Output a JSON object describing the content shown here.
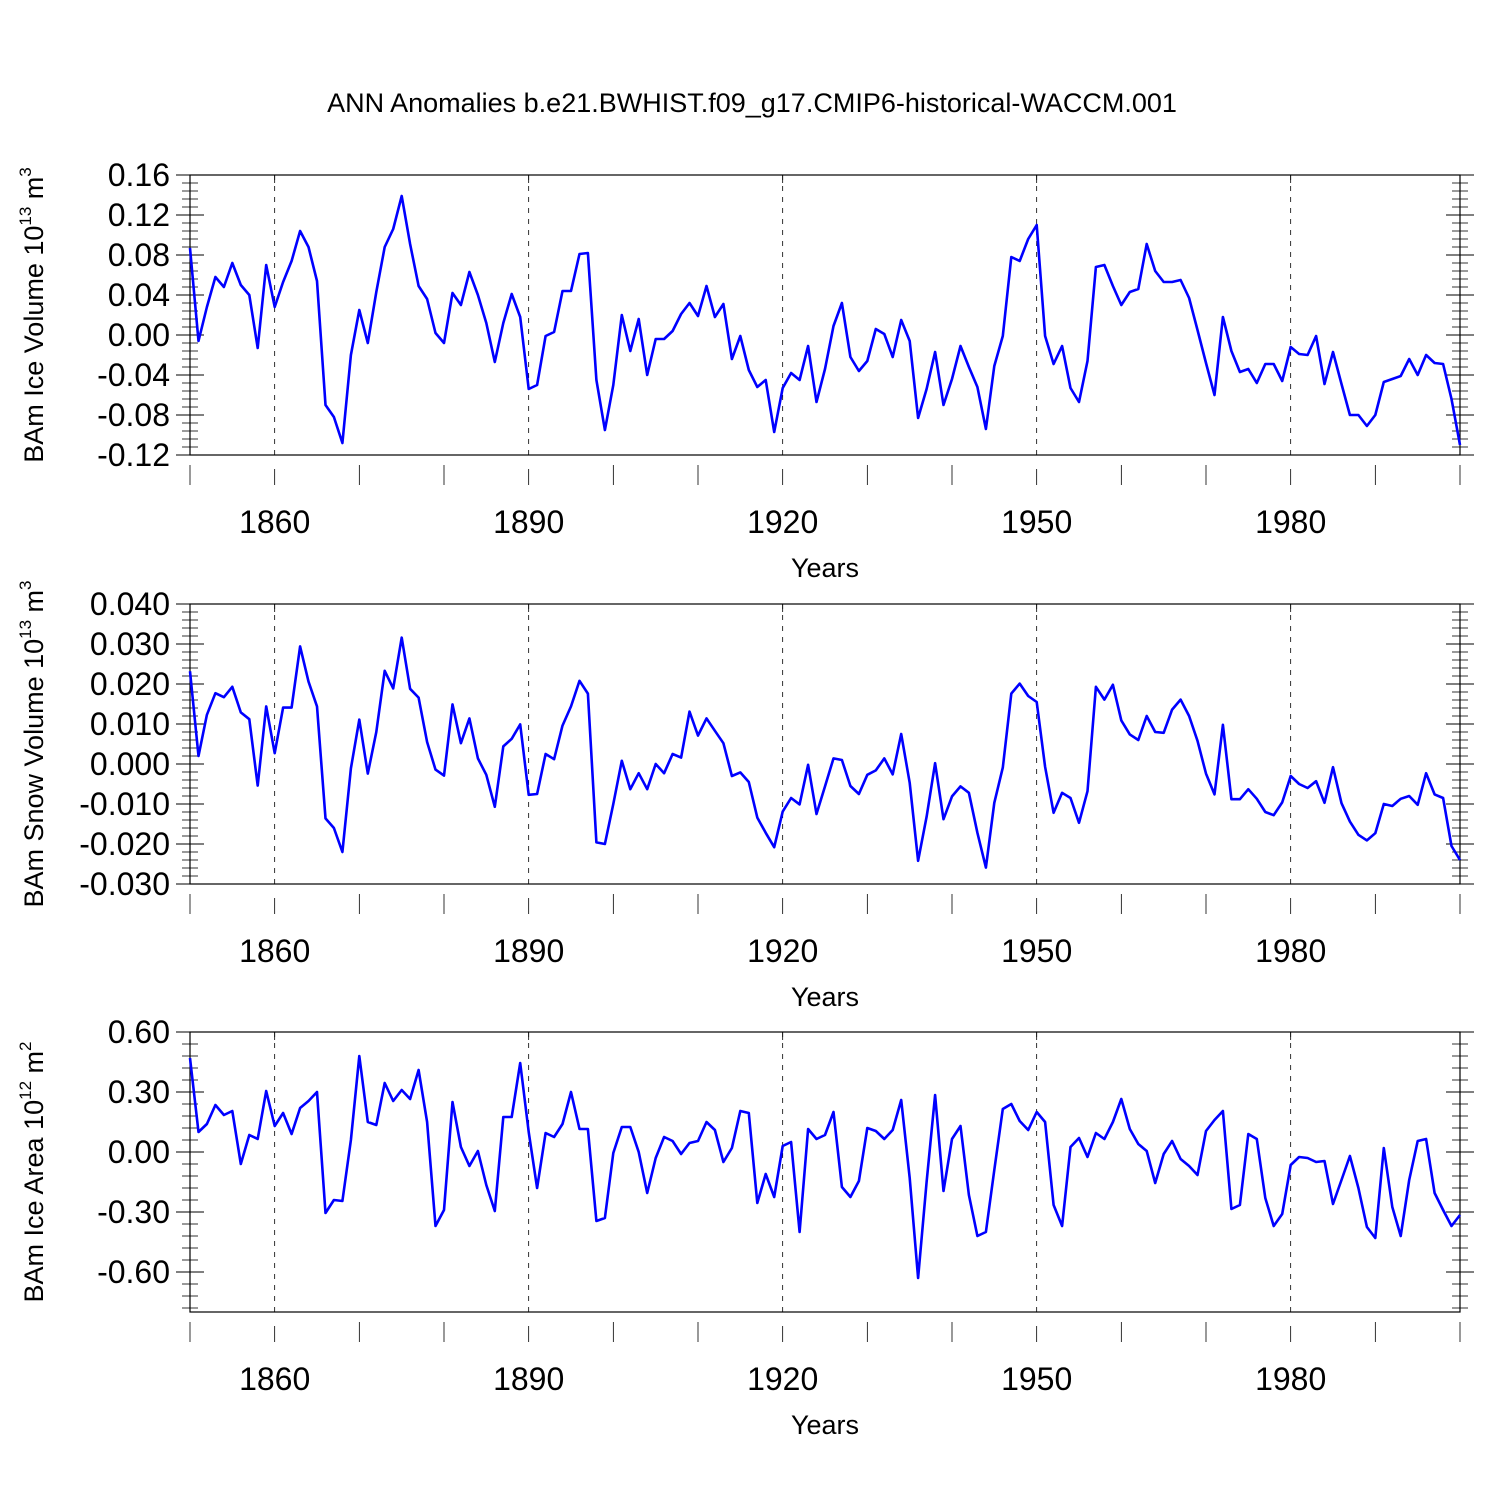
{
  "title": "ANN Anomalies b.e21.BWHIST.f09_g17.CMIP6-historical-WACCM.001",
  "colors": {
    "line": "#0000ff",
    "axis": "#000000",
    "grid": "#000000",
    "background": "#ffffff"
  },
  "chart_data": [
    {
      "type": "line",
      "ylabel": "BAm Ice Volume 10",
      "ylabel_exp": "13",
      "ylabel_unit": " m",
      "ylabel_unit_exp": "3",
      "xlabel": "Years",
      "xlim": [
        1850,
        2000
      ],
      "ylim": [
        -0.12,
        0.16
      ],
      "xticks": [
        1860,
        1890,
        1920,
        1950,
        1980
      ],
      "xtick_labels": [
        "1860",
        "1890",
        "1920",
        "1950",
        "1980"
      ],
      "yticks": [
        -0.12,
        -0.08,
        -0.04,
        0.0,
        0.04,
        0.08,
        0.12,
        0.16
      ],
      "ytick_labels": [
        "-0.12",
        "-0.08",
        "-0.04",
        "0.00",
        "0.04",
        "0.08",
        "0.12",
        "0.16"
      ],
      "grid": "vertical dashed at major x ticks",
      "series": [
        {
          "name": "BAm Ice Volume",
          "x_start": 1850,
          "x_step": 1,
          "values": [
            0.087,
            -0.006,
            0.028,
            0.058,
            0.048,
            0.072,
            0.05,
            0.04,
            -0.013,
            0.07,
            0.028,
            0.053,
            0.074,
            0.104,
            0.088,
            0.054,
            -0.07,
            -0.082,
            -0.108,
            -0.02,
            0.025,
            -0.008,
            0.043,
            0.088,
            0.106,
            0.139,
            0.091,
            0.049,
            0.036,
            0.002,
            -0.008,
            0.042,
            0.03,
            0.063,
            0.04,
            0.012,
            -0.027,
            0.012,
            0.041,
            0.018,
            -0.054,
            -0.05,
            -0.001,
            0.003,
            0.044,
            0.044,
            0.081,
            0.082,
            -0.045,
            -0.095,
            -0.05,
            0.02,
            -0.016,
            0.016,
            -0.04,
            -0.004,
            -0.004,
            0.004,
            0.021,
            0.032,
            0.019,
            0.049,
            0.018,
            0.031,
            -0.024,
            -0.001,
            -0.035,
            -0.052,
            -0.045,
            -0.097,
            -0.053,
            -0.038,
            -0.045,
            -0.011,
            -0.067,
            -0.034,
            0.009,
            0.032,
            -0.022,
            -0.036,
            -0.026,
            0.006,
            0.001,
            -0.022,
            0.015,
            -0.006,
            -0.083,
            -0.054,
            -0.017,
            -0.07,
            -0.044,
            -0.011,
            -0.032,
            -0.052,
            -0.094,
            -0.031,
            -0.001,
            0.078,
            0.074,
            0.096,
            0.11,
            -0.001,
            -0.029,
            -0.011,
            -0.053,
            -0.067,
            -0.026,
            0.068,
            0.07,
            0.049,
            0.03,
            0.043,
            0.046,
            0.091,
            0.064,
            0.053,
            0.053,
            0.055,
            0.037,
            0.005,
            -0.028,
            -0.06,
            0.018,
            -0.016,
            -0.037,
            -0.034,
            -0.048,
            -0.029,
            -0.029,
            -0.046,
            -0.012,
            -0.019,
            -0.02,
            -0.001,
            -0.049,
            -0.017,
            -0.049,
            -0.08,
            -0.08,
            -0.091,
            -0.08,
            -0.047,
            -0.044,
            -0.041,
            -0.024,
            -0.04,
            -0.02,
            -0.028,
            -0.029,
            -0.064,
            -0.11
          ]
        }
      ]
    },
    {
      "type": "line",
      "ylabel": "BAm Snow Volume 10",
      "ylabel_exp": "13",
      "ylabel_unit": " m",
      "ylabel_unit_exp": "3",
      "xlabel": "Years",
      "xlim": [
        1850,
        2000
      ],
      "ylim": [
        -0.03,
        0.04
      ],
      "xticks": [
        1860,
        1890,
        1920,
        1950,
        1980
      ],
      "xtick_labels": [
        "1860",
        "1890",
        "1920",
        "1950",
        "1980"
      ],
      "yticks": [
        -0.03,
        -0.02,
        -0.01,
        0.0,
        0.01,
        0.02,
        0.03,
        0.04
      ],
      "ytick_labels": [
        "-0.030",
        "-0.020",
        "-0.010",
        "0.000",
        "0.010",
        "0.020",
        "0.030",
        "0.040"
      ],
      "grid": "vertical dashed at major x ticks",
      "series": [
        {
          "name": "BAm Snow Volume",
          "x_start": 1850,
          "x_step": 1,
          "values": [
            0.0232,
            0.002,
            0.0123,
            0.0177,
            0.0167,
            0.0193,
            0.0129,
            0.0112,
            -0.0054,
            0.0144,
            0.0027,
            0.0141,
            0.0141,
            0.0294,
            0.0206,
            0.0144,
            -0.0136,
            -0.016,
            -0.022,
            -0.0011,
            0.0111,
            -0.0024,
            0.008,
            0.0233,
            0.0189,
            0.0316,
            0.0188,
            0.0166,
            0.0055,
            -0.0014,
            -0.0029,
            0.0149,
            0.0052,
            0.0114,
            0.0014,
            -0.0027,
            -0.0107,
            0.0044,
            0.0063,
            0.0099,
            -0.0077,
            -0.0075,
            0.0025,
            0.0012,
            0.0096,
            0.0144,
            0.0208,
            0.0176,
            -0.0196,
            -0.02,
            -0.01,
            0.0008,
            -0.0063,
            -0.0023,
            -0.0063,
            0.0,
            -0.0023,
            0.0025,
            0.0016,
            0.0131,
            0.0071,
            0.0114,
            0.0083,
            0.0052,
            -0.003,
            -0.0021,
            -0.0045,
            -0.0134,
            -0.0172,
            -0.0208,
            -0.0119,
            -0.0085,
            -0.0101,
            -0.0002,
            -0.0125,
            -0.0056,
            0.0014,
            0.001,
            -0.0055,
            -0.0075,
            -0.0027,
            -0.0016,
            0.0014,
            -0.0026,
            0.0075,
            -0.0047,
            -0.0242,
            -0.0132,
            0.0002,
            -0.0138,
            -0.0081,
            -0.0056,
            -0.0072,
            -0.0172,
            -0.0259,
            -0.0097,
            -0.0009,
            0.0176,
            0.0201,
            0.017,
            0.0155,
            -0.0007,
            -0.0122,
            -0.0072,
            -0.0085,
            -0.0147,
            -0.0068,
            0.0193,
            0.0161,
            0.0198,
            0.0109,
            0.0074,
            0.006,
            0.012,
            0.008,
            0.0078,
            0.0136,
            0.0161,
            0.012,
            0.0058,
            -0.0024,
            -0.0076,
            0.0098,
            -0.0088,
            -0.0088,
            -0.0063,
            -0.0087,
            -0.012,
            -0.0128,
            -0.0096,
            -0.003,
            -0.005,
            -0.006,
            -0.0043,
            -0.0097,
            -0.0008,
            -0.0098,
            -0.0144,
            -0.0177,
            -0.0191,
            -0.0173,
            -0.01,
            -0.0105,
            -0.0087,
            -0.008,
            -0.0102,
            -0.0023,
            -0.0076,
            -0.0085,
            -0.0205,
            -0.024
          ]
        }
      ]
    },
    {
      "type": "line",
      "ylabel": "BAm Ice Area 10",
      "ylabel_exp": "12",
      "ylabel_unit": " m",
      "ylabel_unit_exp": "2",
      "xlabel": "Years",
      "xlim": [
        1850,
        2000
      ],
      "ylim": [
        -0.8,
        0.6
      ],
      "xticks": [
        1860,
        1890,
        1920,
        1950,
        1980
      ],
      "xtick_labels": [
        "1860",
        "1890",
        "1920",
        "1950",
        "1980"
      ],
      "yticks": [
        -0.6,
        -0.3,
        0.0,
        0.3,
        0.6
      ],
      "ytick_labels": [
        "-0.60",
        "-0.30",
        "0.00",
        "0.30",
        "0.60"
      ],
      "grid": "vertical dashed at major x ticks",
      "series": [
        {
          "name": "BAm Ice Area",
          "x_start": 1850,
          "x_step": 1,
          "values": [
            0.47,
            0.1,
            0.14,
            0.235,
            0.185,
            0.205,
            -0.06,
            0.085,
            0.065,
            0.305,
            0.13,
            0.195,
            0.09,
            0.22,
            0.255,
            0.3,
            -0.305,
            -0.24,
            -0.245,
            0.06,
            0.48,
            0.15,
            0.135,
            0.345,
            0.255,
            0.31,
            0.265,
            0.41,
            0.15,
            -0.37,
            -0.29,
            0.25,
            0.025,
            -0.07,
            0.005,
            -0.165,
            -0.295,
            0.175,
            0.175,
            0.445,
            0.1,
            -0.18,
            0.095,
            0.075,
            0.14,
            0.3,
            0.115,
            0.115,
            -0.345,
            -0.33,
            -0.005,
            0.125,
            0.125,
            0.0,
            -0.205,
            -0.03,
            0.075,
            0.055,
            -0.01,
            0.045,
            0.055,
            0.15,
            0.11,
            -0.05,
            0.02,
            0.205,
            0.195,
            -0.255,
            -0.11,
            -0.225,
            0.03,
            0.05,
            -0.4,
            0.115,
            0.065,
            0.085,
            0.2,
            -0.175,
            -0.225,
            -0.145,
            0.12,
            0.105,
            0.065,
            0.11,
            0.26,
            -0.13,
            -0.63,
            -0.15,
            0.285,
            -0.195,
            0.065,
            0.13,
            -0.215,
            -0.42,
            -0.4,
            -0.09,
            0.215,
            0.24,
            0.155,
            0.11,
            0.2,
            0.15,
            -0.265,
            -0.37,
            0.025,
            0.07,
            -0.025,
            0.095,
            0.065,
            0.15,
            0.265,
            0.115,
            0.04,
            0.005,
            -0.155,
            -0.01,
            0.055,
            -0.035,
            -0.07,
            -0.115,
            0.105,
            0.16,
            0.205,
            -0.285,
            -0.265,
            0.09,
            0.065,
            -0.23,
            -0.37,
            -0.31,
            -0.065,
            -0.025,
            -0.03,
            -0.05,
            -0.045,
            -0.26,
            -0.14,
            -0.02,
            -0.18,
            -0.375,
            -0.43,
            0.02,
            -0.275,
            -0.42,
            -0.14,
            0.055,
            0.065,
            -0.205,
            -0.29,
            -0.37,
            -0.315
          ]
        }
      ]
    }
  ]
}
